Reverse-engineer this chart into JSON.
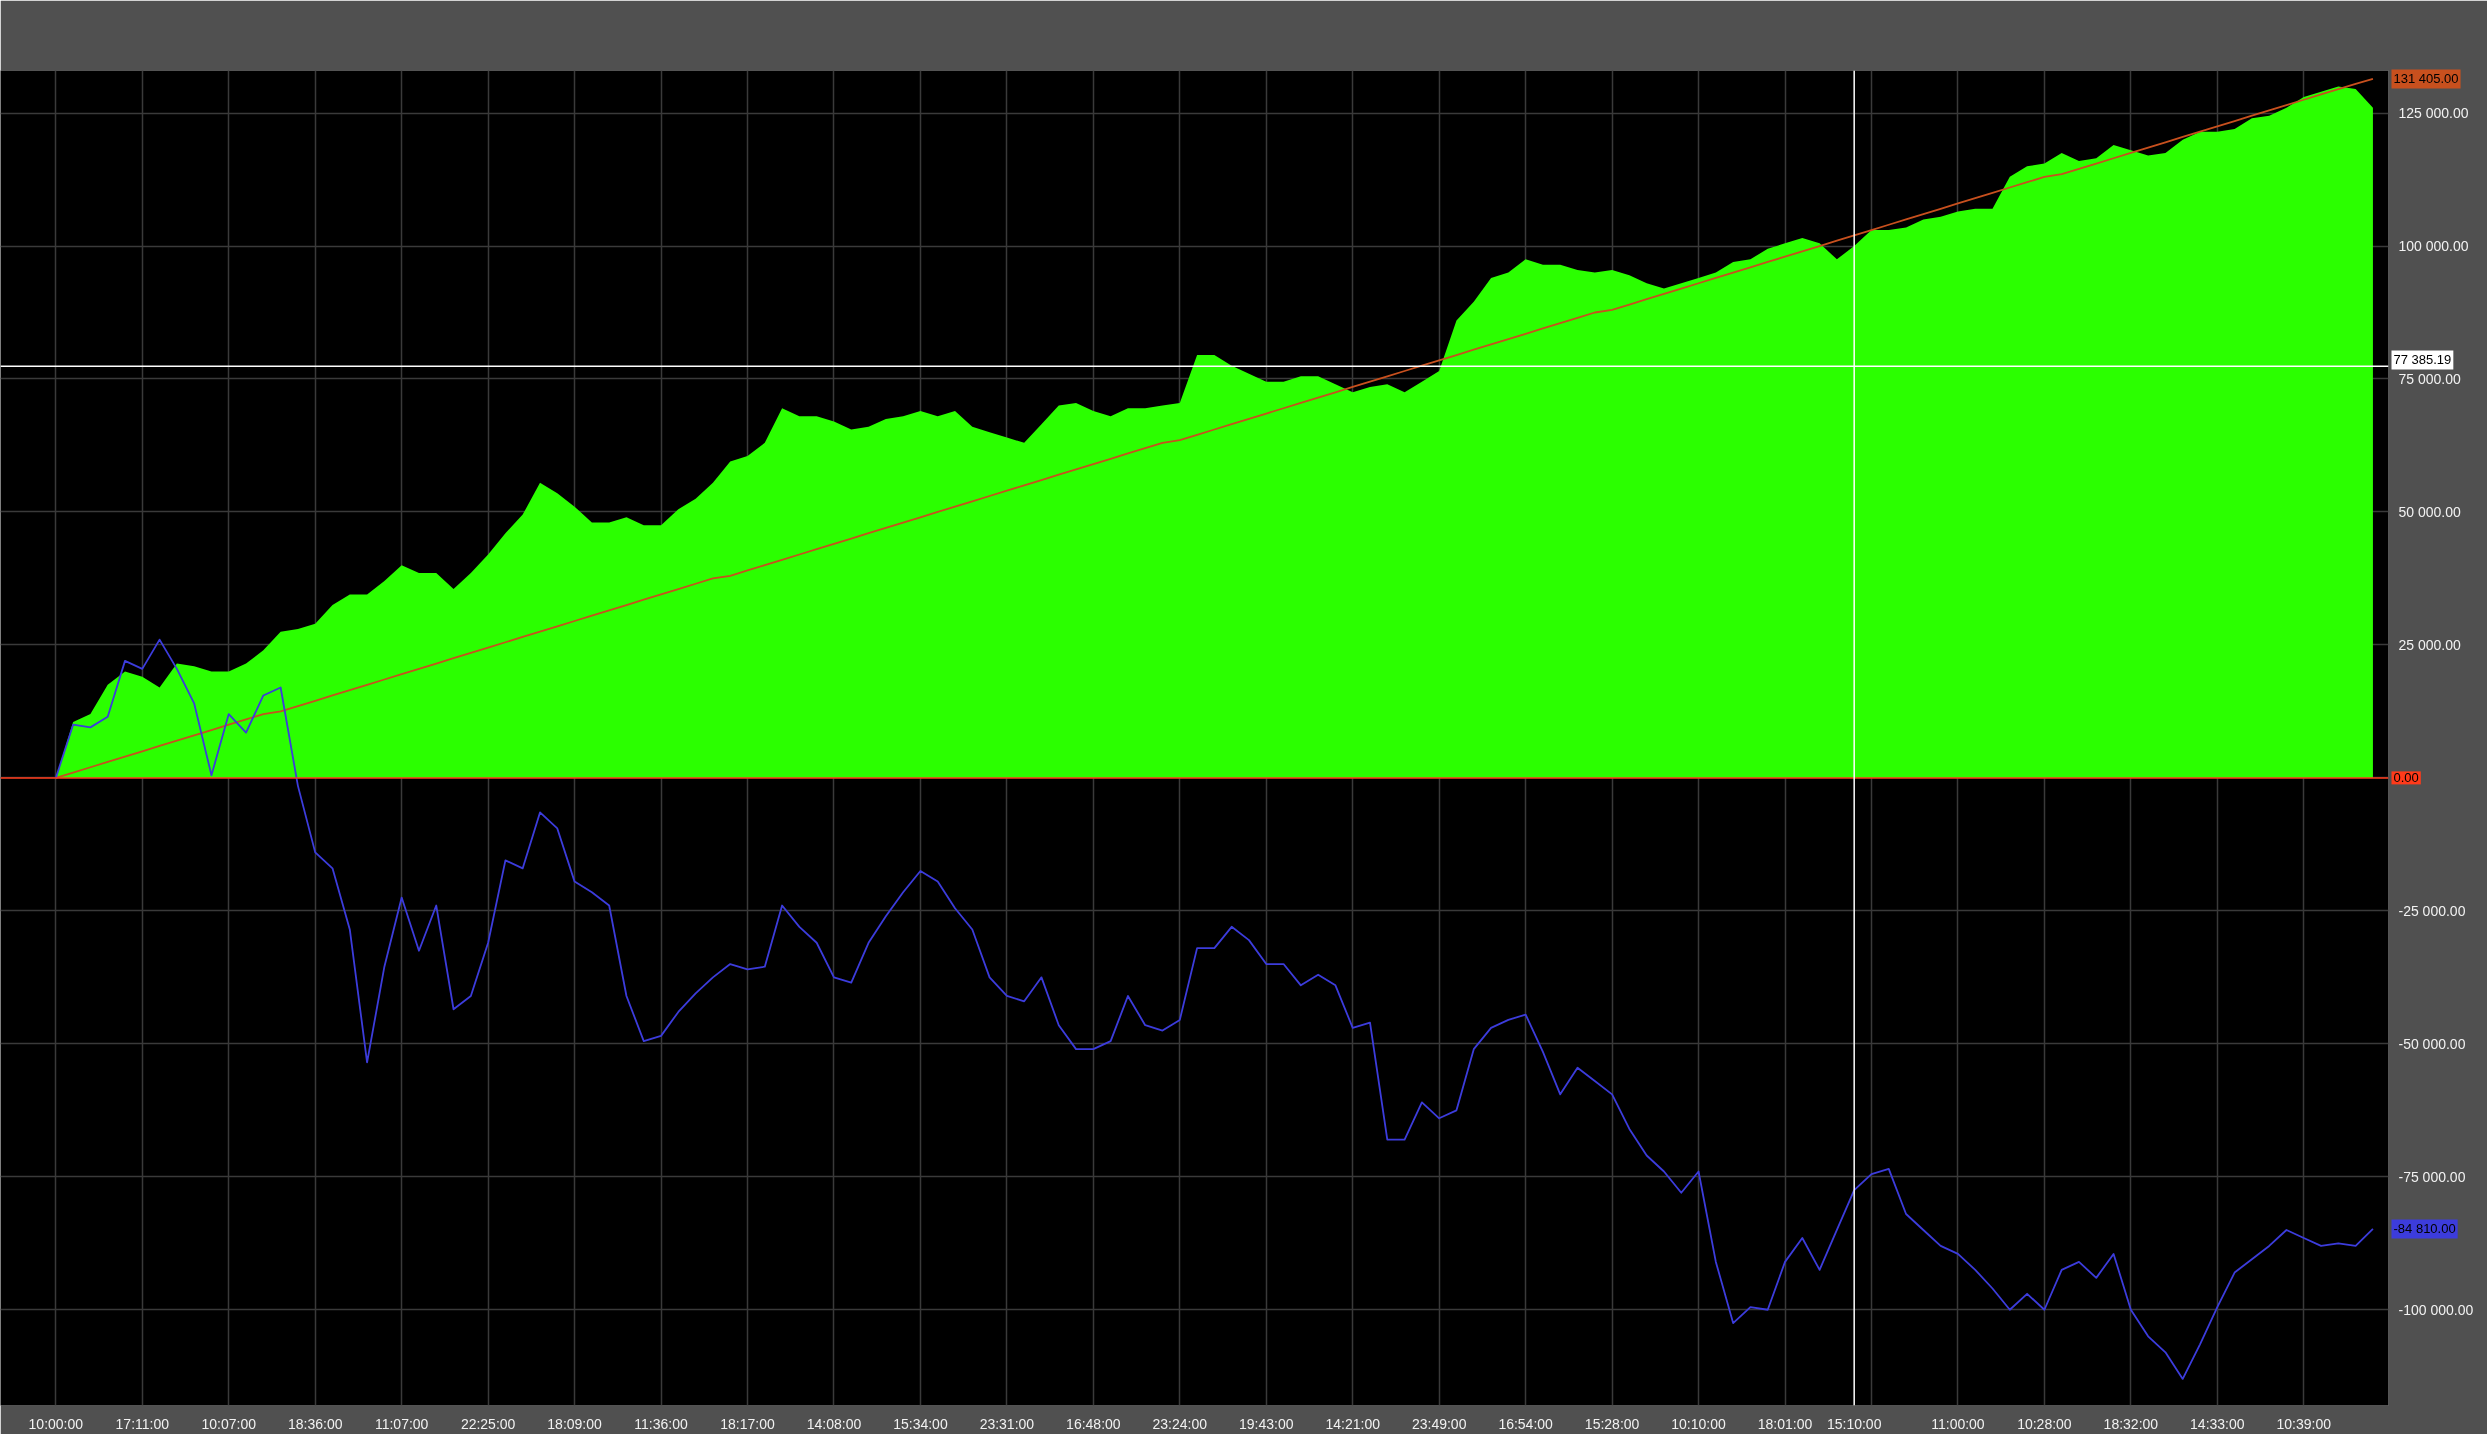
{
  "chart_data": {
    "type": "line",
    "categories": [
      "10:00:00",
      null,
      null,
      null,
      null,
      "17:11:00",
      null,
      null,
      null,
      null,
      "10:07:00",
      null,
      null,
      null,
      null,
      "18:36:00",
      null,
      null,
      null,
      null,
      "11:07:00",
      null,
      null,
      null,
      null,
      "22:25:00",
      null,
      null,
      null,
      null,
      "18:09:00",
      null,
      null,
      null,
      null,
      "11:36:00",
      null,
      null,
      null,
      null,
      "18:17:00",
      null,
      null,
      null,
      null,
      "14:08:00",
      null,
      null,
      null,
      null,
      "15:34:00",
      null,
      null,
      null,
      null,
      "23:31:00",
      null,
      null,
      null,
      null,
      "16:48:00",
      null,
      null,
      null,
      null,
      "23:24:00",
      null,
      null,
      null,
      null,
      "19:43:00",
      null,
      null,
      null,
      null,
      "14:21:00",
      null,
      null,
      null,
      null,
      "23:49:00",
      null,
      null,
      null,
      null,
      "16:54:00",
      null,
      null,
      null,
      null,
      "15:28:00",
      null,
      null,
      null,
      null,
      "10:10:00",
      null,
      null,
      null,
      null,
      "18:01:00",
      null,
      null,
      null,
      "15:10:00",
      null,
      null,
      null,
      null,
      null,
      "11:00:00",
      null,
      null,
      null,
      null,
      "10:28:00",
      null,
      null,
      null,
      null,
      "18:32:00",
      null,
      null,
      null,
      null,
      "14:33:00",
      null,
      null,
      null,
      null,
      "10:39:00",
      null,
      null,
      null,
      null
    ],
    "ylim": [
      -118000,
      133000
    ],
    "yticks": [
      {
        "value": -100000,
        "label": "-100 000.00"
      },
      {
        "value": -75000,
        "label": "-75 000.00"
      },
      {
        "value": -50000,
        "label": "-50 000.00"
      },
      {
        "value": -25000,
        "label": "-25 000.00"
      },
      {
        "value": 0,
        "label": null
      },
      {
        "value": 25000,
        "label": "25 000.00"
      },
      {
        "value": 50000,
        "label": "50 000.00"
      },
      {
        "value": 75000,
        "label": "75 000.00"
      },
      {
        "value": 100000,
        "label": "100 000.00"
      },
      {
        "value": 125000,
        "label": "125 000.00"
      }
    ],
    "grid": true,
    "series": [
      {
        "type": "area",
        "color": "#2bff00",
        "values": [
          0,
          10500,
          12000,
          17500,
          20000,
          19000,
          17000,
          21500,
          21000,
          20000,
          20000,
          21500,
          24000,
          27500,
          28000,
          29000,
          32500,
          34500,
          34500,
          37000,
          40000,
          38500,
          38500,
          35500,
          38500,
          42000,
          46000,
          49500,
          55500,
          53500,
          51000,
          48000,
          48000,
          49000,
          47500,
          47500,
          50500,
          52500,
          55500,
          59500,
          60500,
          63000,
          69500,
          68000,
          68000,
          67000,
          65500,
          66000,
          67500,
          68000,
          69000,
          68000,
          69000,
          66000,
          65000,
          64000,
          63000,
          66500,
          70000,
          70500,
          69000,
          68000,
          69500,
          69500,
          70000,
          70500,
          79500,
          79500,
          77500,
          76000,
          74500,
          74500,
          75500,
          75500,
          74000,
          72500,
          73500,
          74000,
          72500,
          74500,
          76500,
          86000,
          89500,
          94000,
          95000,
          97500,
          96500,
          96500,
          95500,
          95000,
          95500,
          94500,
          93000,
          92000,
          93000,
          94000,
          95000,
          97000,
          97500,
          99500,
          100500,
          101500,
          100500,
          97500,
          100000,
          103000,
          103000,
          103500,
          105000,
          105500,
          106500,
          107000,
          107000,
          113000,
          115000,
          115500,
          117500,
          116000,
          116500,
          119000,
          118000,
          117000,
          117500,
          120000,
          121500,
          121500,
          122000,
          124000,
          124500,
          126000,
          128000,
          129000,
          130000,
          129500,
          126000
        ]
      },
      {
        "color": "#c8501e",
        "values": [
          0,
          1000,
          2000,
          3000,
          4000,
          5000,
          6000,
          7000,
          8000,
          9000,
          10000,
          11000,
          12000,
          12500,
          13500,
          14500,
          15500,
          16500,
          17500,
          18500,
          19500,
          20500,
          21500,
          22500,
          23500,
          24500,
          25500,
          26500,
          27500,
          28500,
          29500,
          30500,
          31500,
          32500,
          33500,
          34500,
          35500,
          36500,
          37500,
          38000,
          39000,
          40000,
          41000,
          42000,
          43000,
          44000,
          45000,
          46000,
          47000,
          48000,
          49000,
          50000,
          51000,
          52000,
          53000,
          54000,
          55000,
          56000,
          57000,
          58000,
          59000,
          60000,
          61000,
          62000,
          63000,
          63500,
          64500,
          65500,
          66500,
          67500,
          68500,
          69500,
          70500,
          71500,
          72500,
          73500,
          74500,
          75500,
          76500,
          77500,
          78500,
          79500,
          80500,
          81500,
          82500,
          83500,
          84500,
          85500,
          86500,
          87500,
          88000,
          89000,
          90000,
          91000,
          92000,
          93000,
          94000,
          95000,
          96000,
          97000,
          98000,
          99000,
          100000,
          101000,
          102000,
          103000,
          104000,
          105000,
          106000,
          107000,
          108000,
          109000,
          110000,
          111000,
          112000,
          113000,
          113500,
          114500,
          115500,
          116500,
          117500,
          118500,
          119500,
          120500,
          121500,
          122500,
          123500,
          124500,
          125500,
          126500,
          127500,
          128500,
          129500,
          130500,
          131405
        ],
        "value_labels": [
          null,
          null,
          null,
          null,
          null,
          null,
          null,
          null,
          null,
          null,
          null,
          null,
          null,
          null,
          null,
          null,
          null,
          null,
          null,
          null,
          null,
          null,
          null,
          null,
          null,
          null,
          null,
          null,
          null,
          null,
          null,
          null,
          null,
          null,
          null,
          null,
          null,
          null,
          null,
          null,
          null,
          null,
          null,
          null,
          null,
          null,
          null,
          null,
          null,
          null,
          null,
          null,
          null,
          null,
          null,
          null,
          null,
          null,
          null,
          null,
          null,
          null,
          null,
          null,
          null,
          null,
          null,
          null,
          null,
          null,
          null,
          null,
          null,
          null,
          null,
          null,
          null,
          null,
          null,
          null,
          null,
          null,
          null,
          null,
          null,
          null,
          null,
          null,
          null,
          null,
          null,
          null,
          null,
          null,
          null,
          null,
          null,
          null,
          null,
          null,
          null,
          null,
          null,
          null,
          null,
          null,
          null,
          null,
          null,
          null,
          null,
          null,
          null,
          null,
          null,
          null,
          null,
          null,
          null,
          null,
          null,
          null,
          null,
          null,
          null,
          null,
          null,
          null,
          null,
          null,
          null,
          null,
          null,
          null,
          "131 405.00"
        ]
      },
      {
        "color": "#3c3cdc",
        "values": [
          0,
          10000,
          9500,
          11500,
          22000,
          20500,
          26000,
          20500,
          14000,
          500,
          12000,
          8500,
          15500,
          17000,
          -1500,
          -14000,
          -17000,
          -28500,
          -53500,
          -35500,
          -22500,
          -32500,
          -24000,
          -43500,
          -41000,
          -31000,
          -15500,
          -17000,
          -6500,
          -9500,
          -19500,
          -21500,
          -24000,
          -41000,
          -49500,
          -48500,
          -44000,
          -40500,
          -37500,
          -35000,
          -36000,
          -35500,
          -24000,
          -28000,
          -31000,
          -37500,
          -38500,
          -31000,
          -26000,
          -21500,
          -17500,
          -19500,
          -24500,
          -28500,
          -37500,
          -41000,
          -42000,
          -37500,
          -46500,
          -51000,
          -51000,
          -49500,
          -41000,
          -46500,
          -47500,
          -45500,
          -32000,
          -32000,
          -28000,
          -30500,
          -35000,
          -35000,
          -39000,
          -37000,
          -39000,
          -47000,
          -46000,
          -68000,
          -68000,
          -61000,
          -64000,
          -62500,
          -51000,
          -47000,
          -45500,
          -44500,
          -51500,
          -59500,
          -54500,
          -57000,
          -59500,
          -66000,
          -71000,
          -74000,
          -78000,
          -74000,
          -91000,
          -102500,
          -99500,
          -100000,
          -91000,
          -86500,
          -92500,
          -85000,
          -77500,
          -74500,
          -73500,
          -82000,
          -85000,
          -88000,
          -89500,
          -92500,
          -96000,
          -100000,
          -97000,
          -100000,
          -92500,
          -91000,
          -94000,
          -89500,
          -100000,
          -105000,
          -108000,
          -113000,
          -106500,
          -99500,
          -93000,
          -90500,
          -88000,
          -85000,
          -86500,
          -88000,
          -87500,
          -88000,
          -84810
        ],
        "value_labels": [
          null,
          null,
          null,
          null,
          null,
          null,
          null,
          null,
          null,
          null,
          null,
          null,
          null,
          null,
          null,
          null,
          null,
          null,
          null,
          null,
          null,
          null,
          null,
          null,
          null,
          null,
          null,
          null,
          null,
          null,
          null,
          null,
          null,
          null,
          null,
          null,
          null,
          null,
          null,
          null,
          null,
          null,
          null,
          null,
          null,
          null,
          null,
          null,
          null,
          null,
          null,
          null,
          null,
          null,
          null,
          null,
          null,
          null,
          null,
          null,
          null,
          null,
          null,
          null,
          null,
          null,
          null,
          null,
          null,
          null,
          null,
          null,
          null,
          null,
          null,
          null,
          null,
          null,
          null,
          null,
          null,
          null,
          null,
          null,
          null,
          null,
          null,
          null,
          null,
          null,
          null,
          null,
          null,
          null,
          null,
          null,
          null,
          null,
          null,
          null,
          null,
          null,
          null,
          null,
          null,
          null,
          null,
          null,
          null,
          null,
          null,
          null,
          null,
          null,
          null,
          null,
          null,
          null,
          null,
          null,
          null,
          null,
          null,
          null,
          null,
          null,
          null,
          null,
          null,
          null,
          null,
          null,
          null,
          null,
          "-84 810.00"
        ]
      }
    ],
    "ref_lines": [
      {
        "axis": "y",
        "value": 0,
        "label": "0.00",
        "color": "#ff3a1a"
      },
      {
        "axis": "y",
        "value": 77385.19,
        "label": "77 385.19",
        "color": "#ffffff"
      },
      {
        "axis": "x",
        "value": "15:10:00",
        "color": "#ffffff"
      }
    ]
  }
}
